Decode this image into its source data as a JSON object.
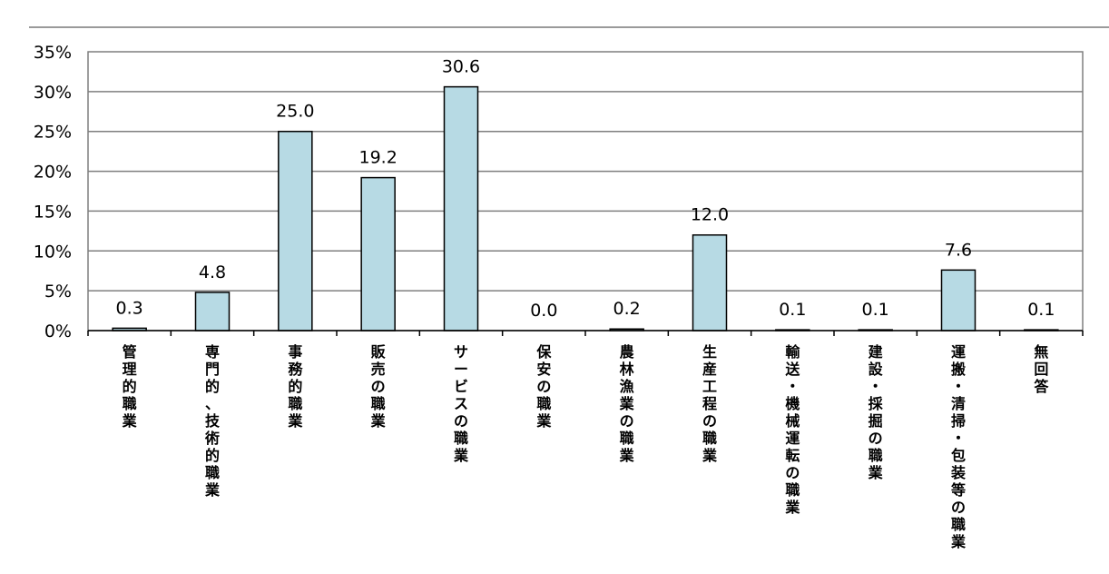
{
  "chart_data": {
    "type": "bar",
    "title": "",
    "xlabel": "",
    "ylabel": "",
    "ylim": [
      0,
      35
    ],
    "yticks": [
      0,
      5,
      10,
      15,
      20,
      25,
      30,
      35
    ],
    "ytick_labels": [
      "0%",
      "5%",
      "10%",
      "15%",
      "20%",
      "25%",
      "30%",
      "35%"
    ],
    "grid": true,
    "legend": "none",
    "categories": [
      "管理的職業",
      "専門的、技術的職業",
      "事務的職業",
      "販売の職業",
      "サービスの職業",
      "保安の職業",
      "農林漁業の職業",
      "生産工程の職業",
      "輸送・機械運転の職業",
      "建設・採掘の職業",
      "運搬・清掃・包装等の職業",
      "無回答"
    ],
    "values": [
      0.3,
      4.8,
      25.0,
      19.2,
      30.6,
      0.0,
      0.2,
      12.0,
      0.1,
      0.1,
      7.6,
      0.1
    ],
    "value_labels": [
      "0.3",
      "4.8",
      "25.0",
      "19.2",
      "30.6",
      "0.0",
      "0.2",
      "12.0",
      "0.1",
      "0.1",
      "7.6",
      "0.1"
    ],
    "colors": {
      "bar_fill": "#b7dae4",
      "bar_stroke": "#000000",
      "grid": "#7f7f7f",
      "frame": "#7f7f7f",
      "text": "#000000"
    }
  }
}
